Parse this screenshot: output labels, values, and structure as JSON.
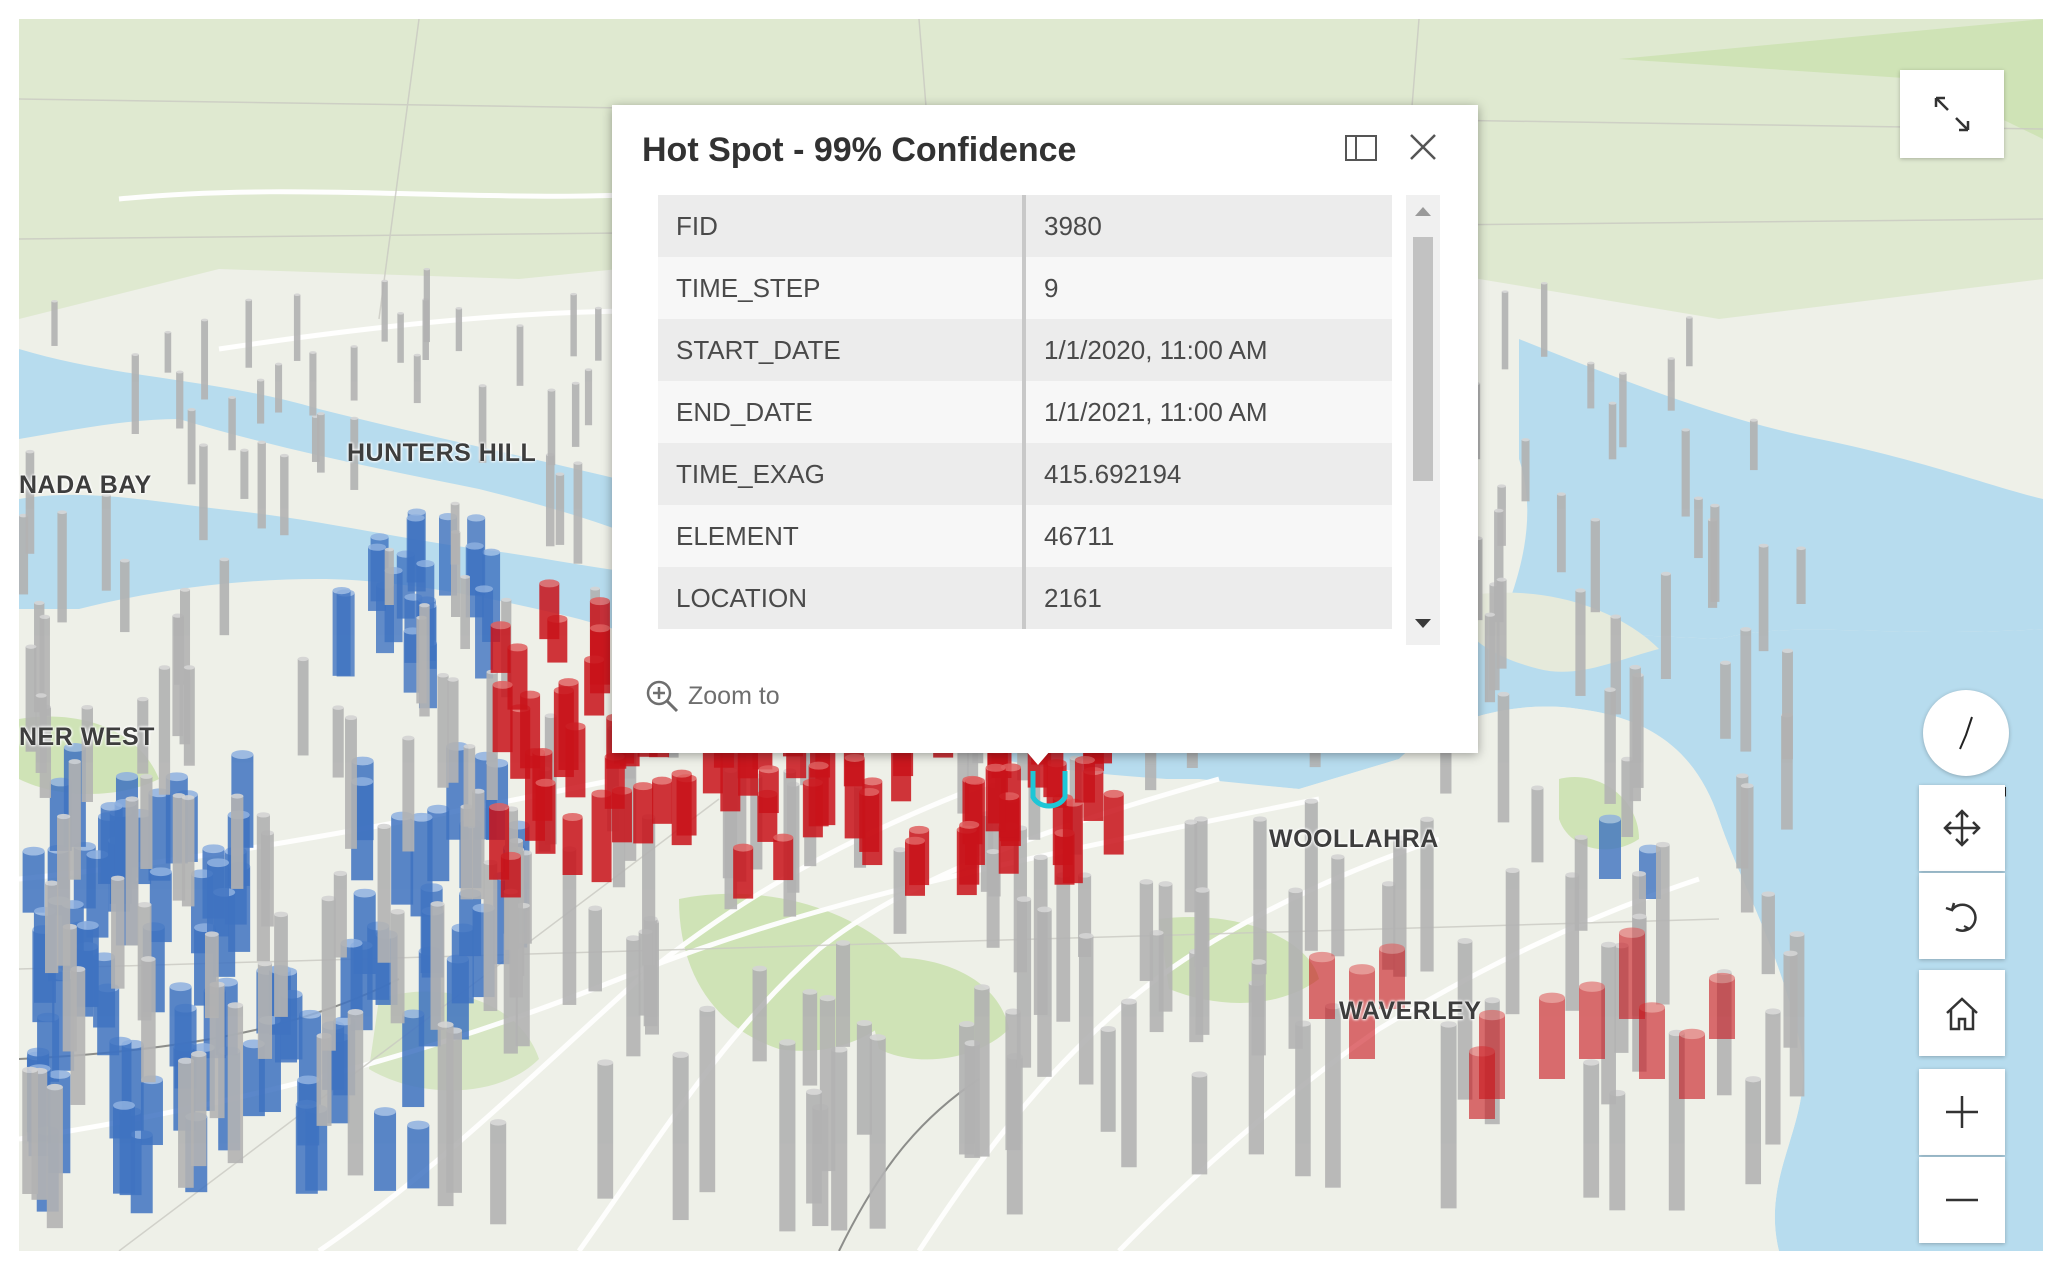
{
  "map": {
    "place_labels": {
      "hunters_hill": "HUNTERS HILL",
      "canada_bay": "NADA BAY",
      "inner_west": "NER WEST",
      "woollahra": "WOOLLAHRA",
      "waverley": "WAVERLEY"
    },
    "colors": {
      "water": "#b7dcee",
      "land": "#eef0e8",
      "park": "#cfe3b6",
      "hot_spot": "#c9131a",
      "cold_spot": "#3f73c1",
      "not_significant": "#b2b2b2"
    }
  },
  "popup": {
    "title": "Hot Spot - 99% Confidence",
    "fields": [
      {
        "key": "FID",
        "value": "3980"
      },
      {
        "key": "TIME_STEP",
        "value": "9"
      },
      {
        "key": "START_DATE",
        "value": "1/1/2020, 11:00 AM"
      },
      {
        "key": "END_DATE",
        "value": "1/1/2021, 11:00 AM"
      },
      {
        "key": "TIME_EXAG",
        "value": "415.692194"
      },
      {
        "key": "ELEMENT",
        "value": "46711"
      },
      {
        "key": "LOCATION",
        "value": "2161"
      }
    ],
    "zoom_to_label": "Zoom to",
    "icons": [
      "dock-icon",
      "close-icon",
      "zoom-in-icon"
    ]
  },
  "controls": {
    "icons": [
      "expand-icon",
      "compass-icon",
      "pan-icon",
      "rotate-icon",
      "home-icon",
      "plus-icon",
      "minus-icon"
    ]
  }
}
